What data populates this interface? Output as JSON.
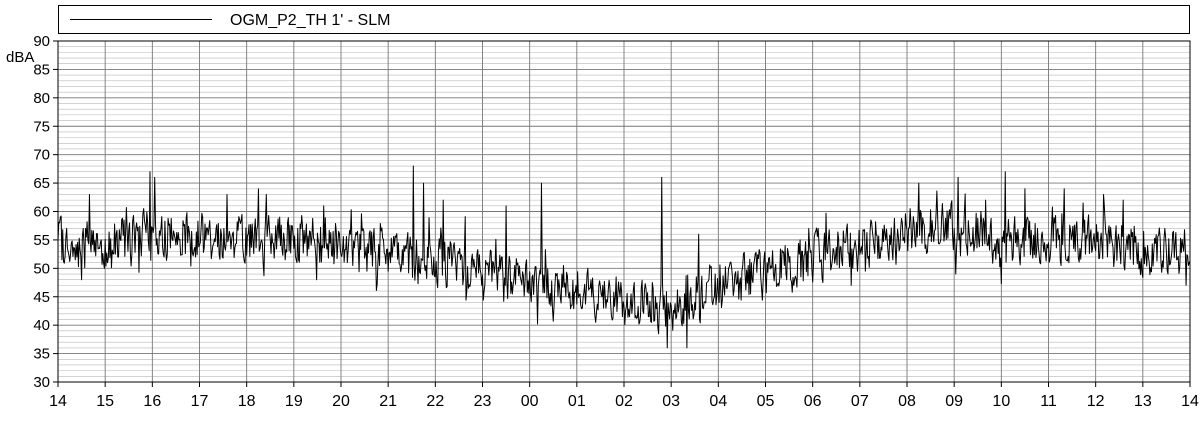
{
  "chart_data": {
    "type": "line",
    "legend": {
      "placement": "top",
      "line_color": "#000000"
    },
    "series": [
      {
        "name": "OGM_P2_TH 1' - SLM",
        "color": "#000000",
        "values": []
      }
    ],
    "y_unit": "dBA",
    "ylim": [
      30,
      90
    ],
    "yticks": [
      30,
      35,
      40,
      45,
      50,
      55,
      60,
      65,
      70,
      75,
      80,
      85,
      90
    ],
    "y_minor_step": 1,
    "x_ticks": [
      "14",
      "15",
      "16",
      "17",
      "18",
      "19",
      "20",
      "21",
      "22",
      "23",
      "00",
      "01",
      "02",
      "03",
      "04",
      "05",
      "06",
      "07",
      "08",
      "09",
      "10",
      "11",
      "12",
      "13",
      "14"
    ],
    "grid": true,
    "sample_interval_minutes": 1,
    "hourly_base_levels": [
      [
        14,
        54
      ],
      [
        15,
        54
      ],
      [
        16,
        56
      ],
      [
        17,
        56
      ],
      [
        18,
        55
      ],
      [
        19,
        55
      ],
      [
        20,
        54
      ],
      [
        21,
        52
      ],
      [
        22,
        51
      ],
      [
        23,
        50
      ],
      [
        0,
        48
      ],
      [
        1,
        46
      ],
      [
        2,
        44
      ],
      [
        3,
        43
      ],
      [
        4,
        47
      ],
      [
        5,
        49
      ],
      [
        6,
        52
      ],
      [
        7,
        54
      ],
      [
        8,
        57
      ],
      [
        9,
        57
      ],
      [
        10,
        55
      ],
      [
        11,
        55
      ],
      [
        12,
        55
      ],
      [
        13,
        53
      ],
      [
        14,
        52
      ]
    ],
    "peaks": [
      {
        "time": "14:40",
        "value": 63
      },
      {
        "time": "15:57",
        "value": 67
      },
      {
        "time": "16:03",
        "value": 66
      },
      {
        "time": "17:35",
        "value": 63
      },
      {
        "time": "18:15",
        "value": 64
      },
      {
        "time": "18:25",
        "value": 63
      },
      {
        "time": "21:32",
        "value": 68
      },
      {
        "time": "21:45",
        "value": 65
      },
      {
        "time": "22:10",
        "value": 62
      },
      {
        "time": "23:30",
        "value": 61
      },
      {
        "time": "00:15",
        "value": 65
      },
      {
        "time": "02:48",
        "value": 66
      },
      {
        "time": "03:35",
        "value": 56
      },
      {
        "time": "08:15",
        "value": 65
      },
      {
        "time": "09:05",
        "value": 66
      },
      {
        "time": "09:40",
        "value": 62
      },
      {
        "time": "10:05",
        "value": 67
      },
      {
        "time": "10:30",
        "value": 64
      },
      {
        "time": "11:20",
        "value": 64
      },
      {
        "time": "12:10",
        "value": 63
      },
      {
        "time": "12:35",
        "value": 62
      }
    ],
    "dips": [
      {
        "time": "02:55",
        "value": 36
      },
      {
        "time": "03:20",
        "value": 36
      },
      {
        "time": "14:30",
        "value": 48
      },
      {
        "time": "13:55",
        "value": 47
      }
    ]
  }
}
